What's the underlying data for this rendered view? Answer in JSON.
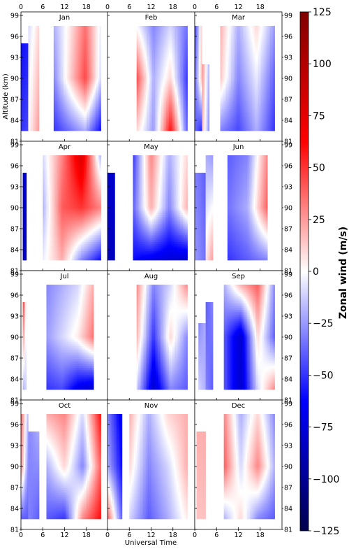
{
  "chart_data": {
    "type": "heatmap",
    "layout": "4x3 panel grid",
    "x_label": "Universal Time",
    "y_label": "Altitude (km)",
    "x_ticks": [
      0,
      6,
      12,
      18
    ],
    "x_range": [
      0,
      24
    ],
    "y_ticks": [
      81,
      84,
      87,
      90,
      93,
      96,
      99
    ],
    "y_range": [
      81,
      99.5
    ],
    "colorbar": {
      "label": "Zonal wind (m/s)",
      "range": [
        -125,
        125
      ],
      "ticks": [
        125,
        100,
        75,
        50,
        25,
        0,
        -25,
        -50,
        -75,
        -100,
        -125
      ],
      "colormap": "seismic",
      "colors": [
        "#00004d",
        "#0000ff",
        "#ffffff",
        "#ff0000",
        "#800000"
      ]
    },
    "panels": [
      {
        "month": "Jan",
        "blocks": [
          {
            "t": [
              0,
              2
            ],
            "alt": [
              82.5,
              95
            ],
            "w": [
              [
                -60,
                -55
              ],
              [
                -50,
                -45
              ]
            ]
          },
          {
            "t": [
              2,
              5
            ],
            "alt": [
              82.5,
              97.5
            ],
            "w": [
              [
                -10,
                10
              ],
              [
                0,
                25
              ]
            ]
          },
          {
            "t": [
              9,
              22
            ],
            "alt": [
              82.5,
              97.5
            ],
            "w": [
              [
                -20,
                5,
                35,
                -5
              ],
              [
                -30,
                10,
                45,
                -10
              ],
              [
                -50,
                -35,
                -20,
                -60
              ]
            ]
          }
        ]
      },
      {
        "month": "Feb",
        "blocks": [
          {
            "t": [
              8,
              22
            ],
            "alt": [
              82.5,
              97.5
            ],
            "w": [
              [
                0,
                -30,
                -10,
                -35
              ],
              [
                45,
                -20,
                10,
                -50
              ],
              [
                10,
                -25,
                60,
                -40
              ]
            ]
          }
        ]
      },
      {
        "month": "Mar",
        "blocks": [
          {
            "t": [
              0,
              2
            ],
            "alt": [
              82.5,
              97.5
            ],
            "w": [
              [
                -50,
                15
              ],
              [
                -40,
                20
              ],
              [
                -35,
                -55
              ]
            ]
          },
          {
            "t": [
              2,
              4
            ],
            "alt": [
              82.5,
              92
            ],
            "w": [
              [
                30,
                -20
              ],
              [
                20,
                -30
              ]
            ]
          },
          {
            "t": [
              7,
              22
            ],
            "alt": [
              82.5,
              97.5
            ],
            "w": [
              [
                20,
                -20,
                10,
                -25
              ],
              [
                15,
                -30,
                -5,
                -40
              ],
              [
                -30,
                -45,
                -20,
                -50
              ]
            ]
          }
        ]
      },
      {
        "month": "Apr",
        "blocks": [
          {
            "t": [
              0.5,
              1.5
            ],
            "alt": [
              82.5,
              95
            ],
            "w": [
              [
                -80,
                -80
              ],
              [
                -85,
                -85
              ]
            ]
          },
          {
            "t": [
              6,
              22
            ],
            "alt": [
              82.5,
              97.5
            ],
            "w": [
              [
                -10,
                30,
                80,
                -20
              ],
              [
                -20,
                40,
                50,
                30
              ],
              [
                -5,
                20,
                -30,
                -60
              ]
            ]
          }
        ]
      },
      {
        "month": "May",
        "blocks": [
          {
            "t": [
              0,
              2
            ],
            "alt": [
              82.5,
              95
            ],
            "w": [
              [
                -80,
                -80
              ],
              [
                -85,
                -85
              ]
            ]
          },
          {
            "t": [
              7,
              22
            ],
            "alt": [
              82.5,
              97.5
            ],
            "w": [
              [
                -50,
                30,
                -20,
                10
              ],
              [
                -40,
                20,
                -30,
                20
              ],
              [
                -60,
                -70,
                -75,
                -80
              ]
            ]
          }
        ]
      },
      {
        "month": "Jun",
        "blocks": [
          {
            "t": [
              0,
              3
            ],
            "alt": [
              82.5,
              95
            ],
            "w": [
              [
                -30,
                -40
              ],
              [
                -25,
                -35
              ]
            ]
          },
          {
            "t": [
              3,
              5
            ],
            "alt": [
              82.5,
              97.5
            ],
            "w": [
              [
                -20,
                -25
              ],
              [
                5,
                25
              ]
            ]
          },
          {
            "t": [
              9,
              20
            ],
            "alt": [
              82.5,
              97.5
            ],
            "w": [
              [
                -40,
                -30,
                30
              ],
              [
                -35,
                -20,
                40
              ],
              [
                -50,
                -40,
                -30
              ]
            ]
          }
        ]
      },
      {
        "month": "Jul",
        "blocks": [
          {
            "t": [
              0.5,
              1.5
            ],
            "alt": [
              82.5,
              95
            ],
            "w": [
              [
                60,
                -10
              ],
              [
                -20,
                -10
              ]
            ]
          },
          {
            "t": [
              7,
              20
            ],
            "alt": [
              82.5,
              97.5
            ],
            "w": [
              [
                -30,
                -20,
                -10,
                20
              ],
              [
                -25,
                -10,
                5,
                35
              ],
              [
                -50,
                -45,
                -70,
                -80
              ]
            ]
          }
        ]
      },
      {
        "month": "Aug",
        "blocks": [
          {
            "t": [
              8,
              22
            ],
            "alt": [
              82.5,
              97.5
            ],
            "w": [
              [
                30,
                -30,
                -10,
                30
              ],
              [
                20,
                -50,
                10,
                -30
              ],
              [
                -10,
                -80,
                -30,
                -40
              ]
            ]
          }
        ]
      },
      {
        "month": "Sep",
        "blocks": [
          {
            "t": [
              1,
              3
            ],
            "alt": [
              82.5,
              92
            ],
            "w": [
              [
                -30,
                -20
              ],
              [
                -10,
                -20
              ]
            ]
          },
          {
            "t": [
              3,
              5
            ],
            "alt": [
              82.5,
              95
            ],
            "w": [
              [
                -40,
                -30
              ],
              [
                -30,
                -40
              ]
            ]
          },
          {
            "t": [
              8,
              22
            ],
            "alt": [
              82.5,
              97.5
            ],
            "w": [
              [
                -20,
                20,
                40,
                -30
              ],
              [
                -40,
                -80,
                10,
                -40
              ],
              [
                -40,
                -80,
                -10,
                30
              ]
            ]
          }
        ]
      },
      {
        "month": "Oct",
        "blocks": [
          {
            "t": [
              0,
              2
            ],
            "alt": [
              82.5,
              97.5
            ],
            "w": [
              [
                40,
                -20
              ],
              [
                30,
                -30
              ],
              [
                -40,
                -40
              ]
            ]
          },
          {
            "t": [
              2,
              5
            ],
            "alt": [
              82.5,
              95
            ],
            "w": [
              [
                -30,
                -20
              ],
              [
                -30,
                -40
              ]
            ]
          },
          {
            "t": [
              7,
              22
            ],
            "alt": [
              82.5,
              97.5
            ],
            "w": [
              [
                20,
                30,
                -10,
                60
              ],
              [
                -20,
                10,
                -30,
                40
              ],
              [
                -40,
                -50,
                30,
                60
              ]
            ]
          }
        ]
      },
      {
        "month": "Nov",
        "blocks": [
          {
            "t": [
              0,
              4
            ],
            "alt": [
              82.5,
              97.5
            ],
            "w": [
              [
                -30,
                -70
              ],
              [
                -20,
                -60
              ],
              [
                40,
                -40
              ]
            ]
          },
          {
            "t": [
              6,
              22
            ],
            "alt": [
              82.5,
              97.5
            ],
            "w": [
              [
                20,
                -20,
                10,
                20
              ],
              [
                10,
                -30,
                -10,
                20
              ],
              [
                -10,
                -40,
                -20,
                5
              ]
            ]
          }
        ]
      },
      {
        "month": "Dec",
        "blocks": [
          {
            "t": [
              0.5,
              3
            ],
            "alt": [
              82.5,
              95
            ],
            "w": [
              [
                20,
                20
              ],
              [
                15,
                15
              ]
            ]
          },
          {
            "t": [
              8,
              22
            ],
            "alt": [
              82.5,
              97.5
            ],
            "w": [
              [
                30,
                -20,
                10,
                -30
              ],
              [
                40,
                -10,
                30,
                -20
              ],
              [
                -20,
                10,
                -30,
                -40
              ]
            ]
          }
        ]
      }
    ]
  }
}
